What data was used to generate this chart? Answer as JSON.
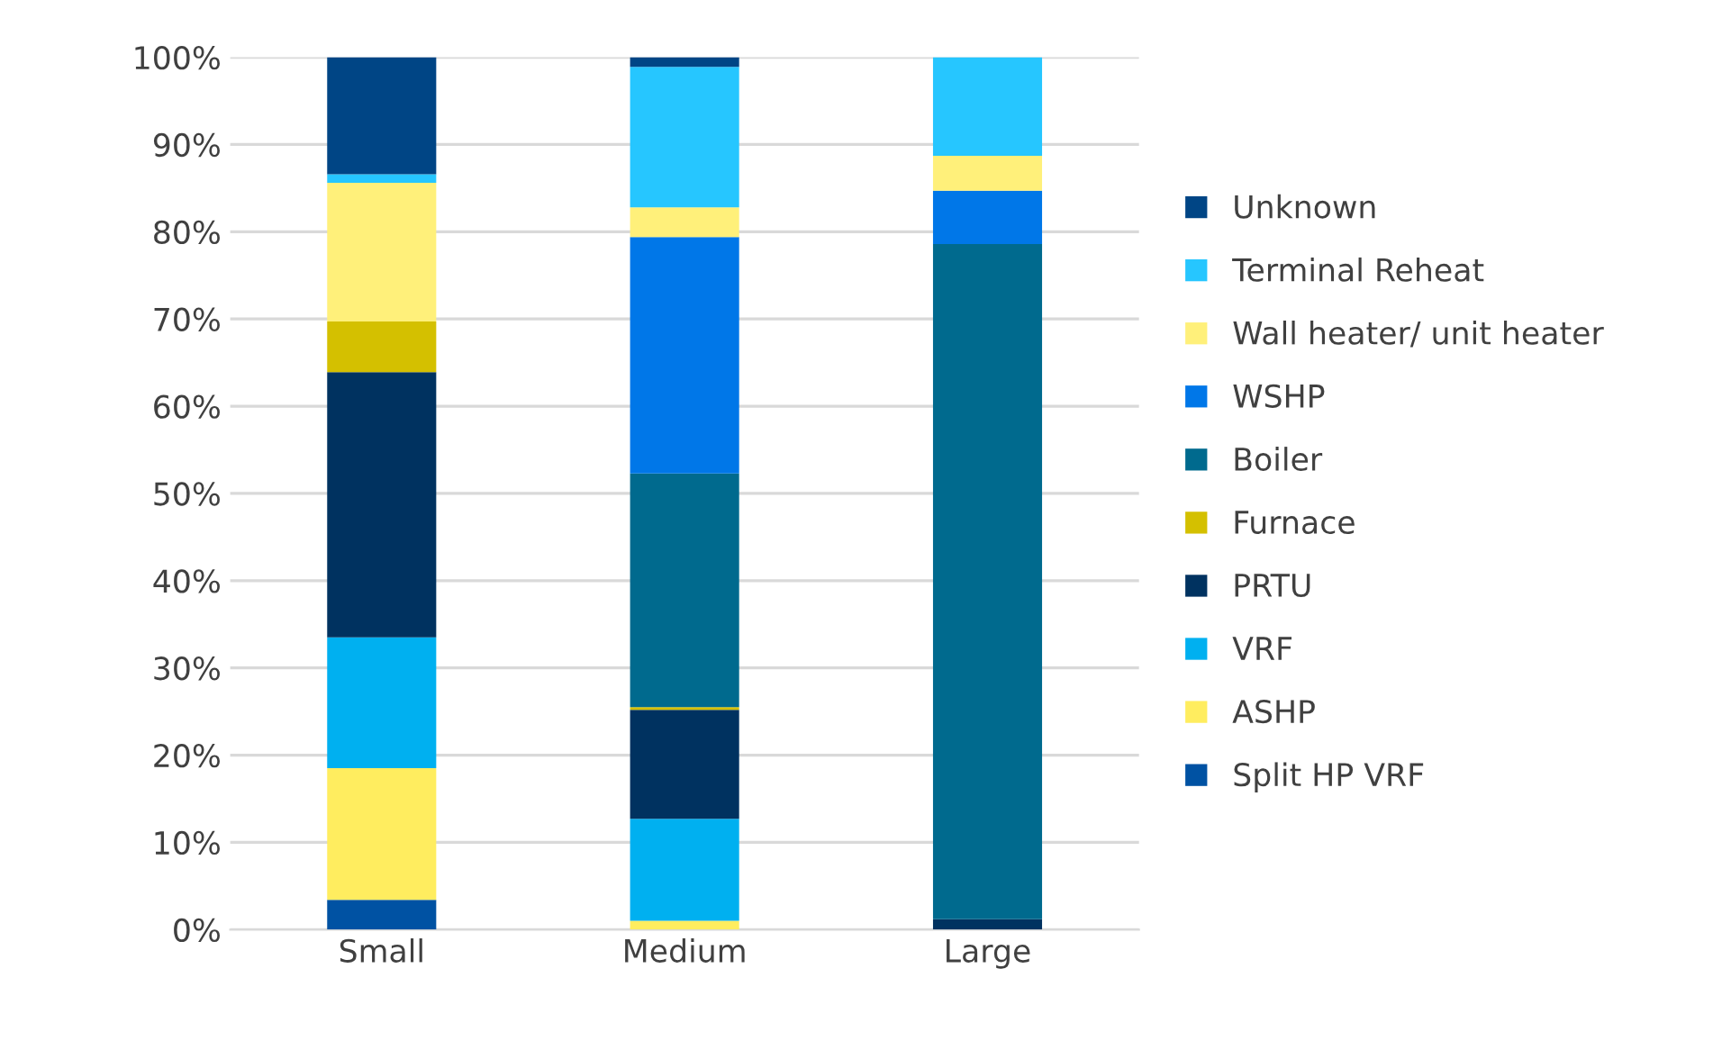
{
  "chart_data": {
    "type": "bar",
    "stacked": true,
    "categories": [
      "Small",
      "Medium",
      "Large"
    ],
    "series": [
      {
        "name": "Split HP VRF",
        "color": "#0052a3",
        "values": [
          3.4,
          0,
          0
        ]
      },
      {
        "name": "ASHP",
        "color": "#ffed5f",
        "values": [
          15.1,
          1.0,
          0
        ]
      },
      {
        "name": "VRF",
        "color": "#00b0f0",
        "values": [
          15.0,
          11.7,
          0
        ]
      },
      {
        "name": "PRTU",
        "color": "#003260",
        "values": [
          30.4,
          12.5,
          1.2
        ]
      },
      {
        "name": "Furnace",
        "color": "#d4c000",
        "values": [
          5.8,
          0.3,
          0
        ]
      },
      {
        "name": "Boiler",
        "color": "#006a8e",
        "values": [
          0,
          26.8,
          77.4
        ]
      },
      {
        "name": "WSHP",
        "color": "#0077e8",
        "values": [
          0,
          27.1,
          6.1
        ]
      },
      {
        "name": "Wall heater/ unit heater",
        "color": "#fff07a",
        "values": [
          15.9,
          3.4,
          4.0
        ]
      },
      {
        "name": "Terminal Reheat",
        "color": "#26c6ff",
        "values": [
          1.0,
          16.1,
          11.3
        ]
      },
      {
        "name": "Unknown",
        "color": "#004585",
        "values": [
          13.4,
          1.1,
          0
        ]
      }
    ],
    "ylim": [
      0,
      100
    ],
    "yticks": [
      {
        "value": 0,
        "label": "0%"
      },
      {
        "value": 10,
        "label": "10%"
      },
      {
        "value": 20,
        "label": "20%"
      },
      {
        "value": 30,
        "label": "30%"
      },
      {
        "value": 40,
        "label": "40%"
      },
      {
        "value": 50,
        "label": "50%"
      },
      {
        "value": 60,
        "label": "60%"
      },
      {
        "value": 70,
        "label": "70%"
      },
      {
        "value": 80,
        "label": "80%"
      },
      {
        "value": 90,
        "label": "90%"
      },
      {
        "value": 100,
        "label": "100%"
      }
    ],
    "grid": "y",
    "legend": "right"
  }
}
